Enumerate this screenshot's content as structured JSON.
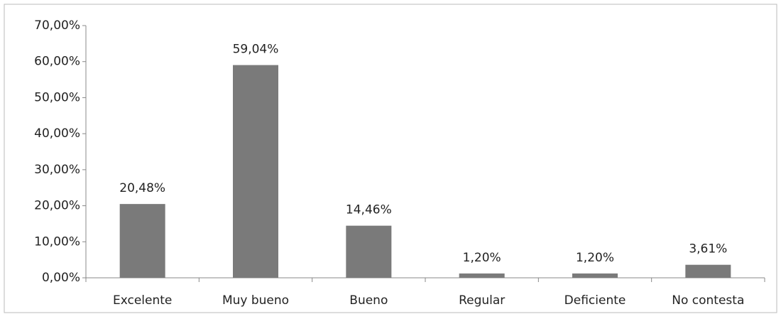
{
  "chart_data": {
    "type": "bar",
    "categories": [
      "Excelente",
      "Muy bueno",
      "Bueno",
      "Regular",
      "Deficiente",
      "No contesta"
    ],
    "values": [
      20.48,
      59.04,
      14.46,
      1.2,
      1.2,
      3.61
    ],
    "value_labels": [
      "20,48%",
      "59,04%",
      "14,46%",
      "1,20%",
      "1,20%",
      "3,61%"
    ],
    "color": "#7a7a7a",
    "ylim": [
      0,
      70
    ],
    "yticks": [
      {
        "value": 0,
        "label": "0,00%"
      },
      {
        "value": 10,
        "label": "10,00%"
      },
      {
        "value": 20,
        "label": "20,00%"
      },
      {
        "value": 30,
        "label": "30,00%"
      },
      {
        "value": 40,
        "label": "40,00%"
      },
      {
        "value": 50,
        "label": "50,00%"
      },
      {
        "value": 60,
        "label": "60,00%"
      },
      {
        "value": 70,
        "label": "70,00%"
      }
    ],
    "grid": false
  }
}
